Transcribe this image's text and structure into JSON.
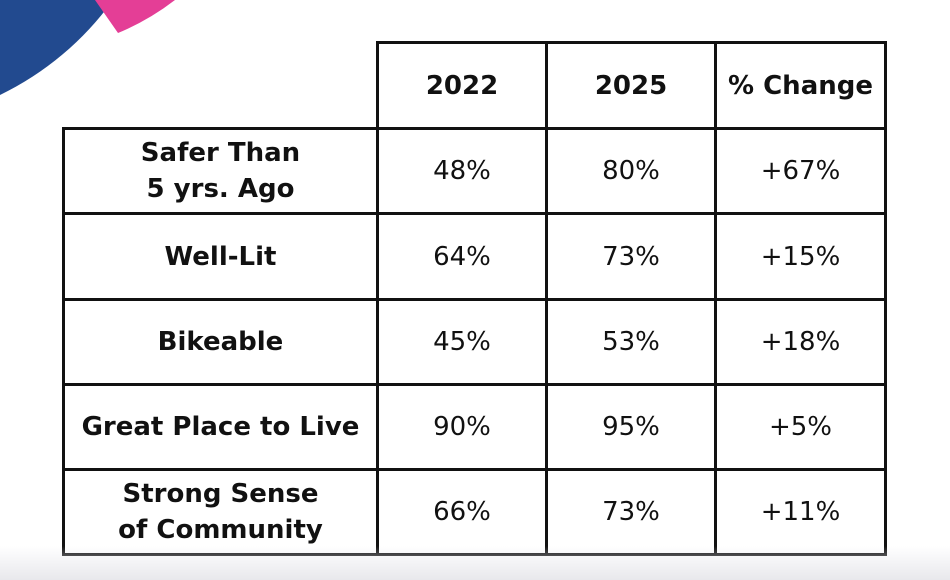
{
  "table": {
    "columns": [
      "2022",
      "2025",
      "% Change"
    ],
    "rows": [
      {
        "label_lines": [
          "Safer Than",
          "5 yrs. Ago"
        ],
        "values": [
          "48%",
          "80%",
          "+67%"
        ]
      },
      {
        "label_lines": [
          "Well-Lit"
        ],
        "values": [
          "64%",
          "73%",
          "+15%"
        ]
      },
      {
        "label_lines": [
          "Bikeable"
        ],
        "values": [
          "45%",
          "53%",
          "+18%"
        ]
      },
      {
        "label_lines": [
          "Great Place to Live"
        ],
        "values": [
          "90%",
          "95%",
          "+5%"
        ]
      },
      {
        "label_lines": [
          "Strong Sense",
          "of Community"
        ],
        "values": [
          "66%",
          "73%",
          "+11%"
        ]
      }
    ]
  },
  "colors": {
    "decor_blue": "#224a8f",
    "decor_pink": "#e43e96",
    "border": "#111111"
  }
}
